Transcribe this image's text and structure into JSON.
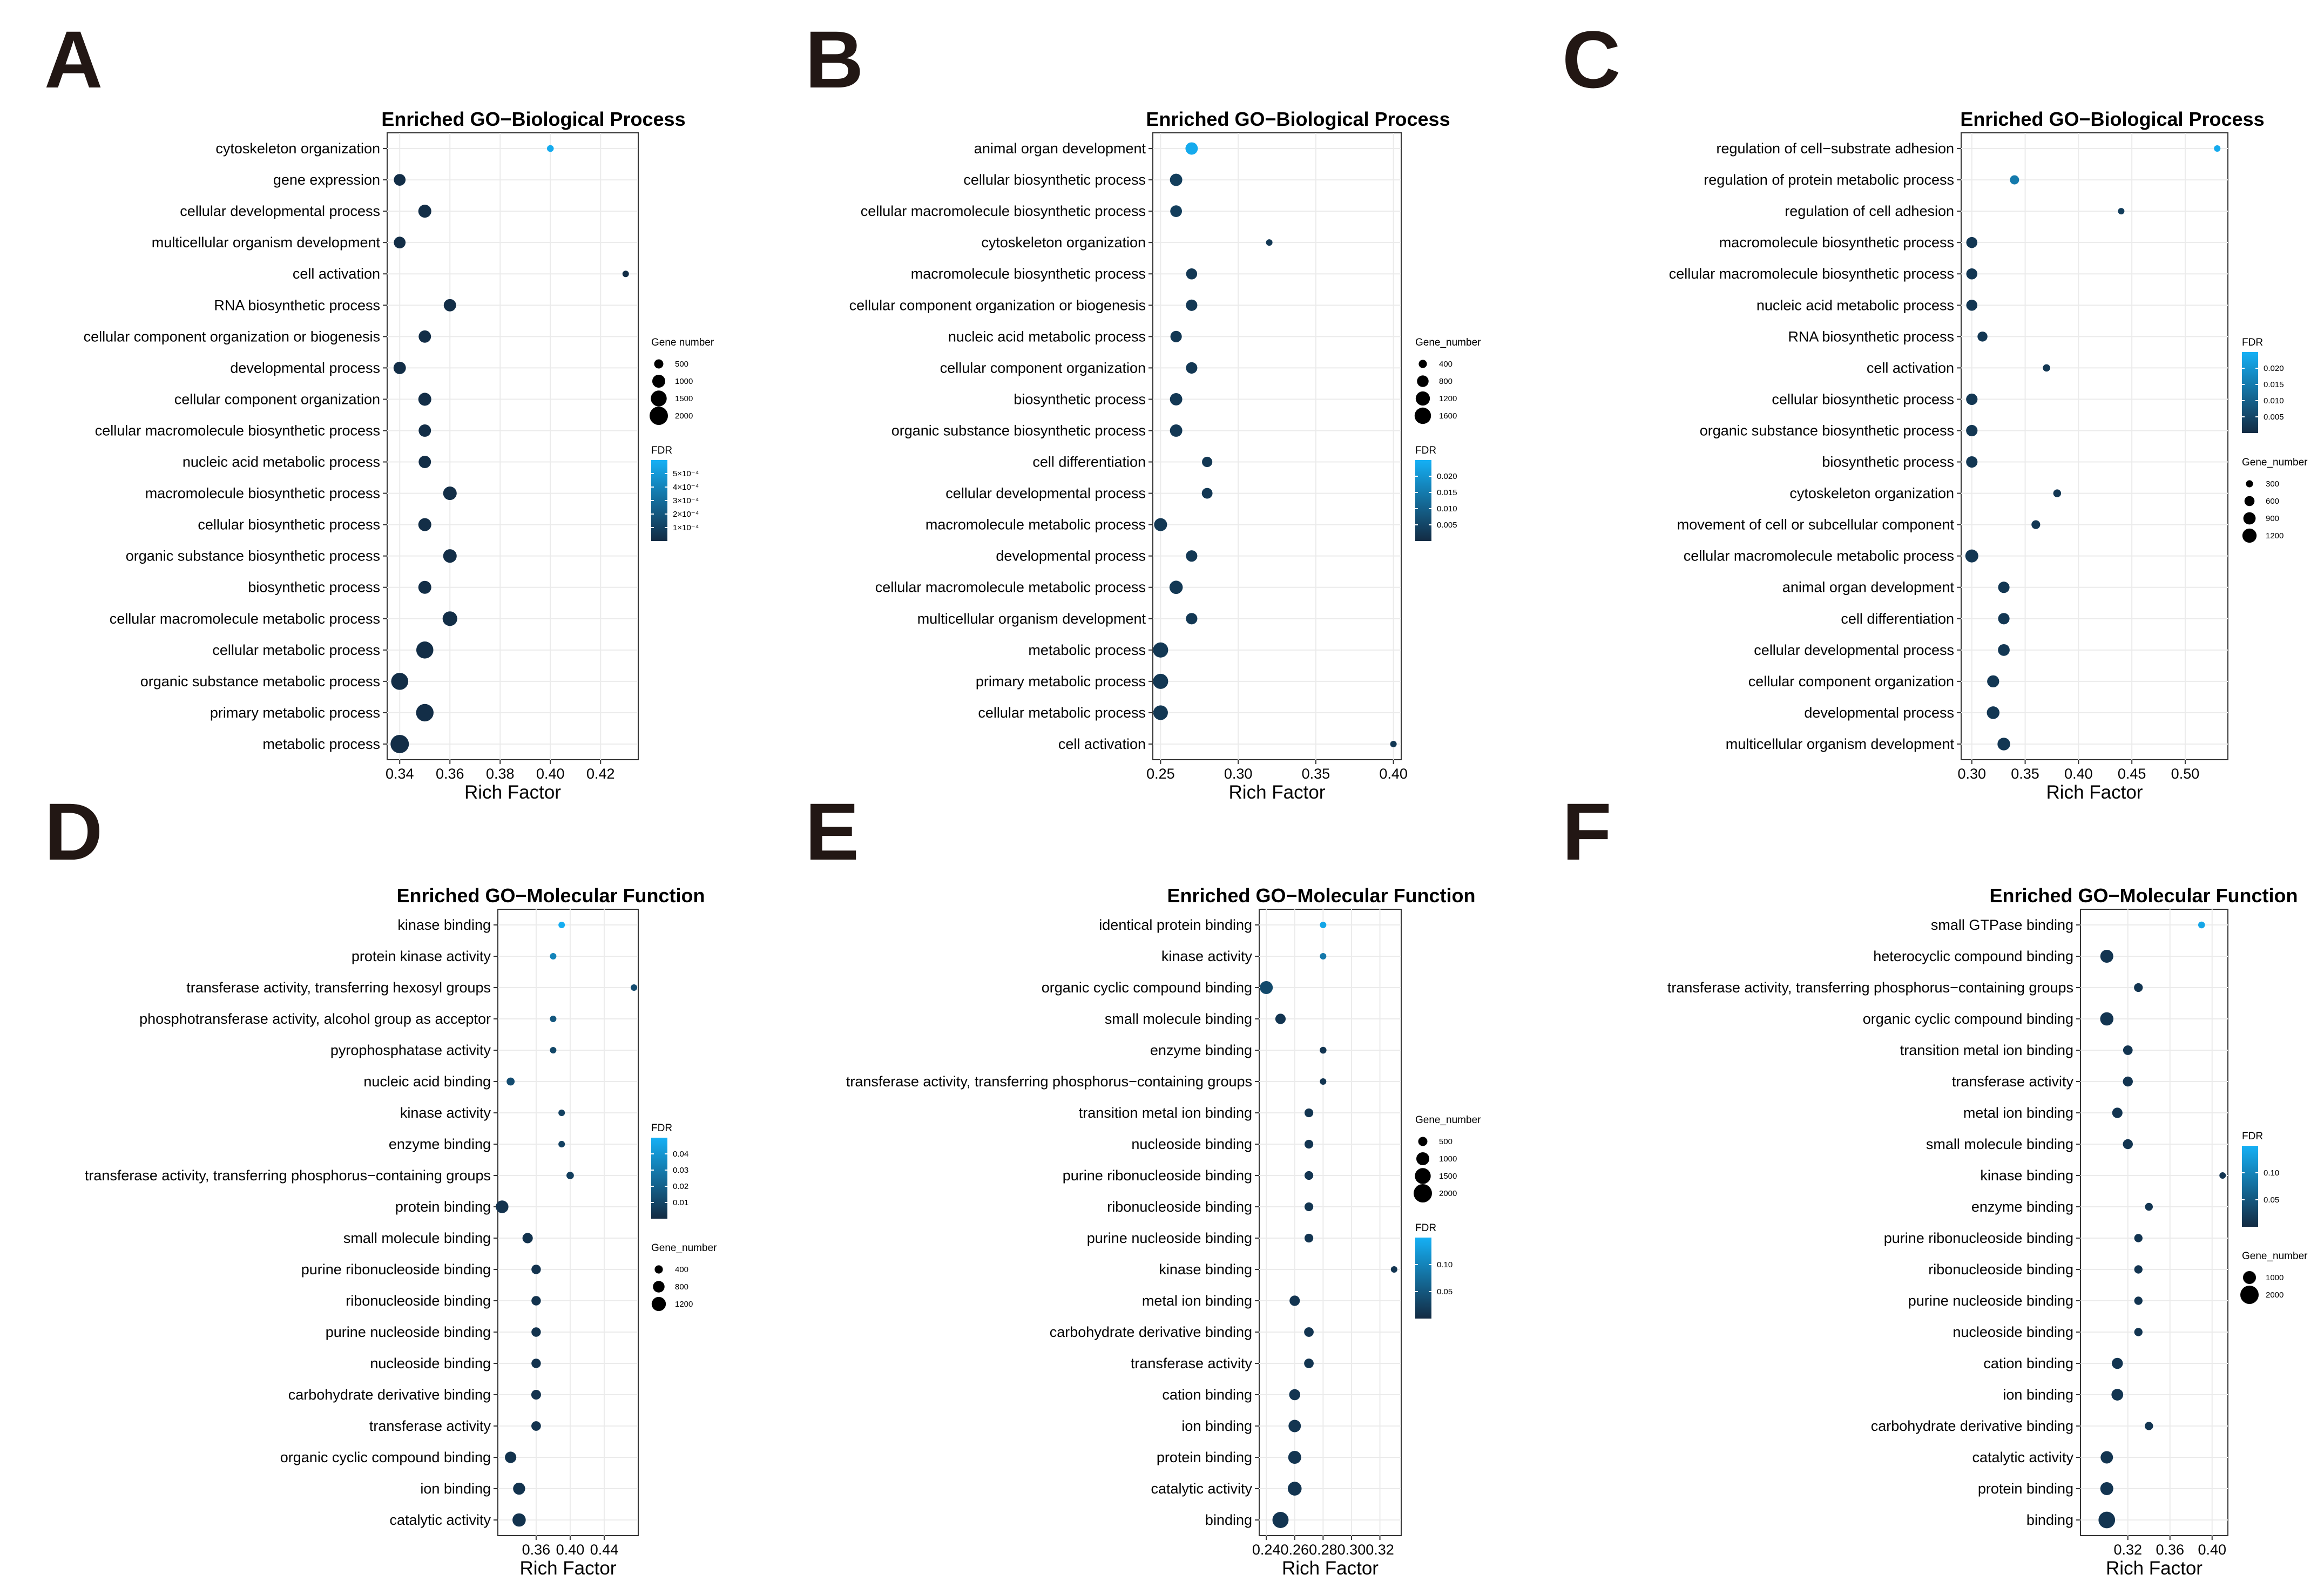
{
  "colors": {
    "fdr_low": "#132b43",
    "fdr_high": "#15b0f5",
    "grid": "#ebebeb",
    "frame": "#333333"
  },
  "chart_data": [
    {
      "panel": "A",
      "type": "scatter",
      "title": "Enriched GO−Biological Process",
      "xlabel": "Rich Factor",
      "xlim": [
        0.335,
        0.435
      ],
      "xticks": [
        0.34,
        0.36,
        0.38,
        0.4,
        0.42
      ],
      "xtick_labels": [
        "0.34",
        "0.36",
        "0.38",
        "0.40",
        "0.42"
      ],
      "size_title": "Gene number",
      "size_labels": [
        "500",
        "1000",
        "1500",
        "2000"
      ],
      "fdr_title": "FDR",
      "fdr_labels": [
        "5×10⁻⁴",
        "4×10⁻⁴",
        "3×10⁻⁴",
        "2×10⁻⁴",
        "1×10⁻⁴"
      ],
      "fdr_max": 0.0005,
      "legend_order": "size-first",
      "categories": [
        "cytoskeleton organization",
        "gene expression",
        "cellular developmental process",
        "multicellular organism development",
        "cell activation",
        "RNA biosynthetic process",
        "cellular component organization or biogenesis",
        "developmental process",
        "cellular component organization",
        "cellular macromolecule biosynthetic process",
        "nucleic acid metabolic process",
        "macromolecule biosynthetic process",
        "cellular biosynthetic process",
        "organic substance biosynthetic process",
        "biosynthetic process",
        "cellular macromolecule metabolic process",
        "cellular metabolic process",
        "organic substance metabolic process",
        "primary metabolic process",
        "metabolic process"
      ],
      "x": [
        0.4,
        0.34,
        0.35,
        0.34,
        0.43,
        0.36,
        0.35,
        0.34,
        0.35,
        0.35,
        0.35,
        0.36,
        0.35,
        0.36,
        0.35,
        0.36,
        0.35,
        0.34,
        0.35,
        0.34
      ],
      "fdr": [
        0.00048,
        1e-05,
        1e-05,
        1e-05,
        1e-05,
        1e-05,
        1e-05,
        1e-05,
        1e-05,
        1e-05,
        1e-05,
        1e-05,
        1e-05,
        1e-05,
        1e-05,
        1e-05,
        1e-05,
        1e-05,
        1e-05,
        1e-05
      ],
      "gene_number": [
        300,
        900,
        1100,
        900,
        200,
        1000,
        1000,
        1000,
        1100,
        1000,
        1000,
        1200,
        1100,
        1200,
        1100,
        1400,
        1900,
        1900,
        2000,
        2200
      ]
    },
    {
      "panel": "B",
      "type": "scatter",
      "title": "Enriched GO−Biological Process",
      "xlabel": "Rich Factor",
      "xlim": [
        0.245,
        0.405
      ],
      "xticks": [
        0.25,
        0.3,
        0.35,
        0.4
      ],
      "xtick_labels": [
        "0.25",
        "0.30",
        "0.35",
        "0.40"
      ],
      "size_title": "Gene_number",
      "size_labels": [
        "400",
        "800",
        "1200",
        "1600"
      ],
      "fdr_title": "FDR",
      "fdr_labels": [
        "0.020",
        "0.015",
        "0.010",
        "0.005"
      ],
      "fdr_max": 0.021,
      "legend_order": "size-first",
      "categories": [
        "animal organ development",
        "cellular biosynthetic process",
        "cellular macromolecule biosynthetic process",
        "cytoskeleton organization",
        "macromolecule biosynthetic process",
        "cellular component organization or biogenesis",
        "nucleic acid metabolic process",
        "cellular component organization",
        "biosynthetic process",
        "organic substance biosynthetic process",
        "cell differentiation",
        "cellular developmental process",
        "macromolecule metabolic process",
        "developmental process",
        "cellular macromolecule metabolic process",
        "multicellular organism development",
        "metabolic process",
        "primary metabolic process",
        "cellular metabolic process",
        "cell activation"
      ],
      "x": [
        0.27,
        0.26,
        0.26,
        0.32,
        0.27,
        0.27,
        0.26,
        0.27,
        0.26,
        0.26,
        0.28,
        0.28,
        0.25,
        0.27,
        0.26,
        0.27,
        0.25,
        0.25,
        0.25,
        0.4
      ],
      "fdr": [
        0.02,
        0.003,
        0.003,
        0.002,
        0.002,
        0.002,
        0.002,
        0.002,
        0.002,
        0.002,
        0.002,
        0.002,
        0.002,
        0.002,
        0.002,
        0.002,
        0.002,
        0.002,
        0.002,
        0.002
      ],
      "gene_number": [
        1000,
        1000,
        900,
        200,
        800,
        850,
        850,
        850,
        1000,
        1000,
        700,
        750,
        1100,
        850,
        1150,
        850,
        1500,
        1500,
        1400,
        250
      ]
    },
    {
      "panel": "C",
      "type": "scatter",
      "title": "Enriched GO−Biological Process",
      "xlabel": "Rich Factor",
      "xlim": [
        0.29,
        0.54
      ],
      "xticks": [
        0.3,
        0.35,
        0.4,
        0.45,
        0.5
      ],
      "xtick_labels": [
        "0.30",
        "0.35",
        "0.40",
        "0.45",
        "0.50"
      ],
      "size_title": "Gene_number",
      "size_labels": [
        "300",
        "600",
        "900",
        "1200"
      ],
      "fdr_title": "FDR",
      "fdr_labels": [
        "0.020",
        "0.015",
        "0.010",
        "0.005"
      ],
      "fdr_max": 0.022,
      "legend_order": "fdr-first",
      "categories": [
        "regulation of cell−substrate adhesion",
        "regulation of protein metabolic process",
        "regulation of cell adhesion",
        "macromolecule biosynthetic process",
        "cellular macromolecule biosynthetic process",
        "nucleic acid metabolic process",
        "RNA biosynthetic process",
        "cell activation",
        "cellular biosynthetic process",
        "organic substance biosynthetic process",
        "biosynthetic process",
        "cytoskeleton organization",
        "movement of cell or subcellular component",
        "cellular macromolecule metabolic process",
        "animal organ development",
        "cell differentiation",
        "cellular developmental process",
        "cellular component organization",
        "developmental process",
        "multicellular organism development"
      ],
      "x": [
        0.53,
        0.34,
        0.44,
        0.3,
        0.3,
        0.3,
        0.31,
        0.37,
        0.3,
        0.3,
        0.3,
        0.38,
        0.36,
        0.3,
        0.33,
        0.33,
        0.33,
        0.32,
        0.32,
        0.33
      ],
      "fdr": [
        0.021,
        0.013,
        0.003,
        0.002,
        0.002,
        0.002,
        0.002,
        0.002,
        0.002,
        0.002,
        0.002,
        0.002,
        0.002,
        0.002,
        0.002,
        0.002,
        0.002,
        0.002,
        0.002,
        0.002
      ],
      "gene_number": [
        200,
        550,
        200,
        800,
        800,
        800,
        650,
        350,
        850,
        850,
        850,
        400,
        500,
        1100,
        850,
        850,
        900,
        950,
        1050,
        1050
      ]
    },
    {
      "panel": "D",
      "type": "scatter",
      "title": "Enriched GO−Molecular Function",
      "xlabel": "Rich Factor",
      "xlim": [
        0.315,
        0.48
      ],
      "xticks": [
        0.36,
        0.4,
        0.44
      ],
      "xtick_labels": [
        "0.36",
        "0.40",
        "0.44"
      ],
      "size_title": "Gene_number",
      "size_labels": [
        "400",
        "800",
        "1200"
      ],
      "fdr_title": "FDR",
      "fdr_labels": [
        "0.04",
        "0.03",
        "0.02",
        "0.01"
      ],
      "fdr_max": 0.048,
      "legend_order": "fdr-first",
      "categories": [
        "kinase binding",
        "protein kinase activity",
        "transferase activity, transferring hexosyl groups",
        "phosphotransferase activity, alcohol group as acceptor",
        "pyrophosphatase activity",
        "nucleic acid binding",
        "kinase activity",
        "enzyme binding",
        "transferase activity, transferring phosphorus−containing groups",
        "protein binding",
        "small molecule binding",
        "purine ribonucleoside binding",
        "ribonucleoside binding",
        "purine nucleoside binding",
        "nucleoside binding",
        "carbohydrate derivative binding",
        "transferase activity",
        "organic cyclic compound binding",
        "ion binding",
        "catalytic activity"
      ],
      "x": [
        0.39,
        0.38,
        0.475,
        0.38,
        0.38,
        0.33,
        0.39,
        0.39,
        0.4,
        0.32,
        0.35,
        0.36,
        0.36,
        0.36,
        0.36,
        0.36,
        0.36,
        0.33,
        0.34,
        0.34
      ],
      "fdr": [
        0.047,
        0.032,
        0.012,
        0.016,
        0.01,
        0.012,
        0.008,
        0.008,
        0.007,
        0.003,
        0.003,
        0.003,
        0.003,
        0.003,
        0.003,
        0.003,
        0.003,
        0.003,
        0.003,
        0.003
      ],
      "gene_number": [
        200,
        260,
        150,
        220,
        260,
        420,
        280,
        280,
        360,
        1050,
        700,
        580,
        580,
        580,
        580,
        620,
        600,
        850,
        950,
        1150
      ]
    },
    {
      "panel": "E",
      "type": "scatter",
      "title": "Enriched GO−Molecular Function",
      "xlabel": "Rich Factor",
      "xlim": [
        0.235,
        0.335
      ],
      "xticks": [
        0.24,
        0.26,
        0.28,
        0.3,
        0.32
      ],
      "xtick_labels": [
        "0.24",
        "0.26",
        "0.28",
        "0.30",
        "0.32"
      ],
      "size_title": "Gene_number",
      "size_labels": [
        "500",
        "1000",
        "1500",
        "2000"
      ],
      "fdr_title": "FDR",
      "fdr_labels": [
        "0.10",
        "0.05"
      ],
      "fdr_max": 0.13,
      "legend_order": "size-first",
      "categories": [
        "identical protein binding",
        "kinase activity",
        "organic cyclic compound binding",
        "small molecule binding",
        "enzyme binding",
        "transferase activity, transferring phosphorus−containing groups",
        "transition metal ion binding",
        "nucleoside binding",
        "purine ribonucleoside binding",
        "ribonucleoside binding",
        "purine nucleoside binding",
        "kinase binding",
        "metal ion binding",
        "carbohydrate derivative binding",
        "transferase activity",
        "cation binding",
        "ion binding",
        "protein binding",
        "catalytic activity",
        "binding"
      ],
      "x": [
        0.28,
        0.28,
        0.24,
        0.25,
        0.28,
        0.28,
        0.27,
        0.27,
        0.27,
        0.27,
        0.27,
        0.33,
        0.26,
        0.27,
        0.27,
        0.26,
        0.26,
        0.26,
        0.26,
        0.25
      ],
      "fdr": [
        0.12,
        0.075,
        0.03,
        0.01,
        0.01,
        0.01,
        0.01,
        0.01,
        0.01,
        0.01,
        0.01,
        0.01,
        0.01,
        0.01,
        0.01,
        0.01,
        0.01,
        0.01,
        0.01,
        0.01
      ],
      "gene_number": [
        250,
        250,
        1100,
        700,
        300,
        250,
        500,
        500,
        500,
        500,
        500,
        150,
        700,
        600,
        600,
        800,
        1000,
        1100,
        1250,
        1700
      ]
    },
    {
      "panel": "F",
      "type": "scatter",
      "title": "Enriched GO−Molecular Function",
      "xlabel": "Rich Factor",
      "xlim": [
        0.275,
        0.415
      ],
      "xticks": [
        0.32,
        0.36,
        0.4
      ],
      "xtick_labels": [
        "0.32",
        "0.36",
        "0.40"
      ],
      "size_title": "Gene_number",
      "size_labels": [
        "1000",
        "2000"
      ],
      "fdr_title": "FDR",
      "fdr_labels": [
        "0.10",
        "0.05"
      ],
      "fdr_max": 0.13,
      "legend_order": "fdr-first",
      "categories": [
        "small GTPase binding",
        "heterocyclic compound binding",
        "transferase activity, transferring phosphorus−containing groups",
        "organic cyclic compound binding",
        "transition metal ion binding",
        "transferase activity",
        "metal ion binding",
        "small molecule binding",
        "kinase binding",
        "enzyme binding",
        "purine ribonucleoside binding",
        "ribonucleoside binding",
        "purine nucleoside binding",
        "nucleoside binding",
        "cation binding",
        "ion binding",
        "carbohydrate derivative binding",
        "catalytic activity",
        "protein binding",
        "binding"
      ],
      "x": [
        0.39,
        0.3,
        0.33,
        0.3,
        0.32,
        0.32,
        0.31,
        0.32,
        0.41,
        0.34,
        0.33,
        0.33,
        0.33,
        0.33,
        0.31,
        0.31,
        0.34,
        0.3,
        0.3,
        0.3
      ],
      "fdr": [
        0.12,
        0.01,
        0.01,
        0.01,
        0.01,
        0.01,
        0.01,
        0.01,
        0.01,
        0.01,
        0.01,
        0.01,
        0.01,
        0.01,
        0.01,
        0.01,
        0.01,
        0.01,
        0.01,
        0.01
      ],
      "gene_number": [
        300,
        1100,
        500,
        1150,
        600,
        650,
        700,
        650,
        150,
        400,
        450,
        450,
        450,
        450,
        800,
        900,
        450,
        1000,
        1100,
        1800
      ]
    }
  ]
}
